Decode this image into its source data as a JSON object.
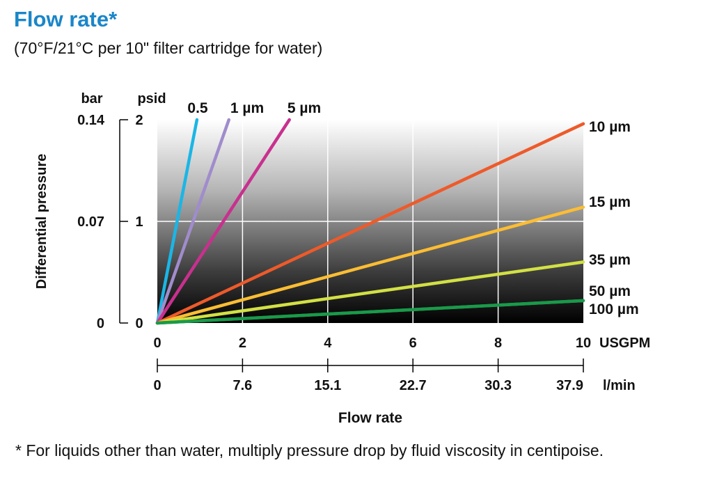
{
  "title": "Flow rate*",
  "subtitle": "(70°F/21°C per 10\" filter cartridge for water)",
  "footnote": "* For liquids other than water, multiply pressure drop by fluid viscosity in centipoise.",
  "chart_data": {
    "type": "line",
    "xlabel": "Flow rate",
    "ylabel": "Differential pressure",
    "xlim": [
      0,
      10
    ],
    "ylim": [
      0,
      2
    ],
    "x_unit": "USGPM",
    "x_ticks": [
      "0",
      "2",
      "4",
      "6",
      "8",
      "10"
    ],
    "x2_unit": "l/min",
    "x2_ticks": [
      "0",
      "7.6",
      "15.1",
      "22.7",
      "30.3",
      "37.9"
    ],
    "y_unit": "psid",
    "y_ticks": [
      "0",
      "1",
      "2"
    ],
    "y2_unit": "bar",
    "y2_ticks": [
      "0",
      "0.07",
      "0.14"
    ],
    "grid": true,
    "series": [
      {
        "name": "0.5",
        "color": "#1ab6e6",
        "x": [
          0,
          0.93
        ],
        "y": [
          0,
          2
        ]
      },
      {
        "name": "1 µm",
        "color": "#a08ccc",
        "x": [
          0,
          1.68
        ],
        "y": [
          0,
          2
        ]
      },
      {
        "name": "5 µm",
        "color": "#c8308e",
        "x": [
          0,
          3.1
        ],
        "y": [
          0,
          2
        ]
      },
      {
        "name": "10 µm",
        "color": "#ee5a2a",
        "x": [
          0,
          10
        ],
        "y": [
          0,
          1.96
        ]
      },
      {
        "name": "15 µm",
        "color": "#fbbd33",
        "x": [
          0,
          10
        ],
        "y": [
          0,
          1.14
        ]
      },
      {
        "name": "35 µm",
        "color": "#d2e044",
        "x": [
          0,
          10
        ],
        "y": [
          0,
          0.6
        ]
      },
      {
        "name": "50 µm",
        "color": "#1a9a4a",
        "x": [
          0,
          10
        ],
        "y": [
          0,
          0.22
        ]
      },
      {
        "name": "100 µm",
        "color": "#1a9a4a",
        "x": [
          0,
          10
        ],
        "y": [
          0,
          0.22
        ]
      }
    ]
  }
}
